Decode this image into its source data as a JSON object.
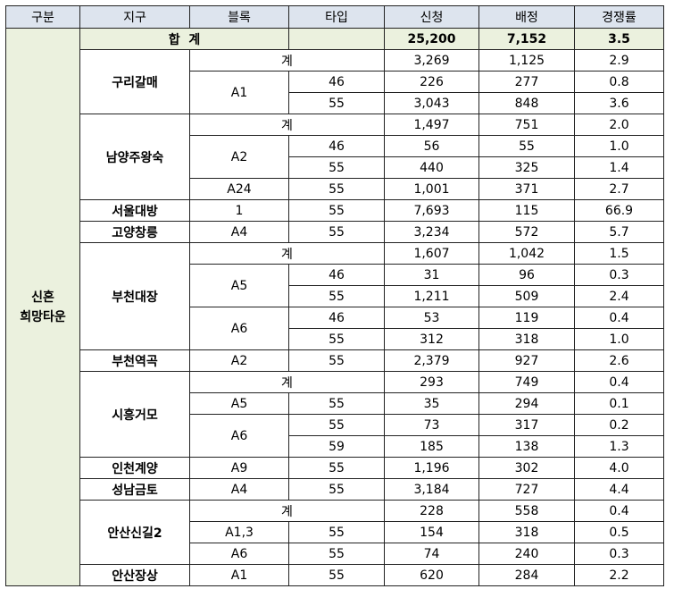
{
  "header": [
    "구분",
    "지구",
    "블록",
    "타입",
    "신청",
    "배정",
    "경쟁률"
  ],
  "group": [
    "신혼",
    "희망타운"
  ],
  "total": {
    "label": "합  계",
    "applied": "25,200",
    "assigned": "7,152",
    "rate": "3.5"
  },
  "districts": [
    {
      "name": "구리갈매",
      "subtotal": {
        "label": "계",
        "applied": "3,269",
        "assigned": "1,125",
        "rate": "2.9"
      },
      "blocks": [
        {
          "name": "A1",
          "rows": [
            [
              "46",
              "226",
              "277",
              "0.8"
            ],
            [
              "55",
              "3,043",
              "848",
              "3.6"
            ]
          ]
        }
      ]
    },
    {
      "name": "남양주왕숙",
      "subtotal": {
        "label": "계",
        "applied": "1,497",
        "assigned": "751",
        "rate": "2.0"
      },
      "blocks": [
        {
          "name": "A2",
          "rows": [
            [
              "46",
              "56",
              "55",
              "1.0"
            ],
            [
              "55",
              "440",
              "325",
              "1.4"
            ]
          ]
        },
        {
          "name": "A24",
          "rows": [
            [
              "55",
              "1,001",
              "371",
              "2.7"
            ]
          ]
        }
      ]
    },
    {
      "name": "서울대방",
      "blocks": [
        {
          "name": "1",
          "rows": [
            [
              "55",
              "7,693",
              "115",
              "66.9"
            ]
          ]
        }
      ]
    },
    {
      "name": "고양창릉",
      "blocks": [
        {
          "name": "A4",
          "rows": [
            [
              "55",
              "3,234",
              "572",
              "5.7"
            ]
          ]
        }
      ]
    },
    {
      "name": "부천대장",
      "subtotal": {
        "label": "계",
        "applied": "1,607",
        "assigned": "1,042",
        "rate": "1.5"
      },
      "blocks": [
        {
          "name": "A5",
          "rows": [
            [
              "46",
              "31",
              "96",
              "0.3"
            ],
            [
              "55",
              "1,211",
              "509",
              "2.4"
            ]
          ]
        },
        {
          "name": "A6",
          "rows": [
            [
              "46",
              "53",
              "119",
              "0.4"
            ],
            [
              "55",
              "312",
              "318",
              "1.0"
            ]
          ]
        }
      ]
    },
    {
      "name": "부천역곡",
      "blocks": [
        {
          "name": "A2",
          "rows": [
            [
              "55",
              "2,379",
              "927",
              "2.6"
            ]
          ]
        }
      ]
    },
    {
      "name": "시흥거모",
      "subtotal": {
        "label": "계",
        "applied": "293",
        "assigned": "749",
        "rate": "0.4"
      },
      "blocks": [
        {
          "name": "A5",
          "rows": [
            [
              "55",
              "35",
              "294",
              "0.1"
            ]
          ]
        },
        {
          "name": "A6",
          "rows": [
            [
              "55",
              "73",
              "317",
              "0.2"
            ],
            [
              "59",
              "185",
              "138",
              "1.3"
            ]
          ]
        }
      ]
    },
    {
      "name": "인천계양",
      "blocks": [
        {
          "name": "A9",
          "rows": [
            [
              "55",
              "1,196",
              "302",
              "4.0"
            ]
          ]
        }
      ]
    },
    {
      "name": "성남금토",
      "blocks": [
        {
          "name": "A4",
          "rows": [
            [
              "55",
              "3,184",
              "727",
              "4.4"
            ]
          ]
        }
      ]
    },
    {
      "name": "안산신길2",
      "subtotal": {
        "label": "계",
        "applied": "228",
        "assigned": "558",
        "rate": "0.4"
      },
      "blocks": [
        {
          "name": "A1,3",
          "rows": [
            [
              "55",
              "154",
              "318",
              "0.5"
            ]
          ]
        },
        {
          "name": "A6",
          "rows": [
            [
              "55",
              "74",
              "240",
              "0.3"
            ]
          ]
        }
      ]
    },
    {
      "name": "안산장상",
      "blocks": [
        {
          "name": "A1",
          "rows": [
            [
              "55",
              "620",
              "284",
              "2.2"
            ]
          ]
        }
      ]
    }
  ]
}
